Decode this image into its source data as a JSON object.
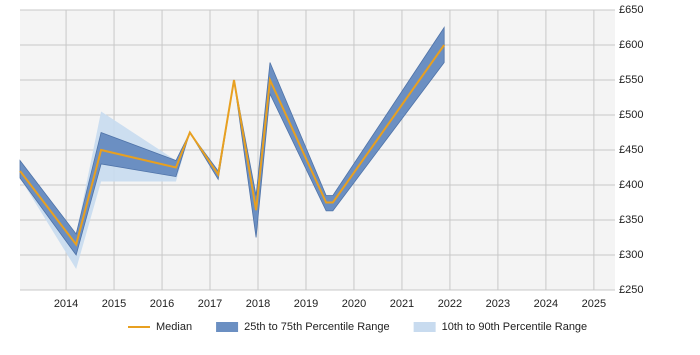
{
  "chart_data": {
    "type": "band-line",
    "x": [
      2013.04,
      2014.21,
      2014.73,
      2016.29,
      2016.58,
      2017.17,
      2017.5,
      2017.96,
      2018.25,
      2019.42,
      2019.56,
      2021.88
    ],
    "series": [
      {
        "name": "Median",
        "color": "#e8a020",
        "values": [
          420,
          315,
          450,
          425,
          475,
          415,
          550,
          364,
          550,
          375,
          375,
          600
        ]
      },
      {
        "name": "25th to 75th Percentile Range",
        "color": "#6b8fc2",
        "low": [
          410,
          300,
          430,
          412,
          475,
          408,
          550,
          325,
          530,
          363,
          363,
          575
        ],
        "high": [
          435,
          330,
          475,
          435,
          475,
          420,
          550,
          385,
          575,
          385,
          385,
          625
        ]
      },
      {
        "name": "10th to 90th Percentile Range",
        "color": "#c8dbef",
        "low": [
          410,
          280,
          405,
          405,
          475,
          408,
          550,
          325,
          530,
          363,
          363,
          575
        ],
        "high": [
          435,
          330,
          505,
          435,
          475,
          420,
          550,
          385,
          575,
          385,
          385,
          625
        ]
      }
    ],
    "xlim": [
      2013.04,
      2025.44
    ],
    "xticks": [
      2014,
      2015,
      2016,
      2017,
      2018,
      2019,
      2020,
      2021,
      2022,
      2023,
      2024,
      2025
    ],
    "ylim": [
      250,
      650
    ],
    "yticks": [
      {
        "value": 250,
        "label": "£250"
      },
      {
        "value": 300,
        "label": "£300"
      },
      {
        "value": 350,
        "label": "£350"
      },
      {
        "value": 400,
        "label": "£400"
      },
      {
        "value": 450,
        "label": "£450"
      },
      {
        "value": 500,
        "label": "£500"
      },
      {
        "value": 550,
        "label": "£550"
      },
      {
        "value": 600,
        "label": "£600"
      },
      {
        "value": 650,
        "label": "£650"
      }
    ],
    "grid": true
  }
}
